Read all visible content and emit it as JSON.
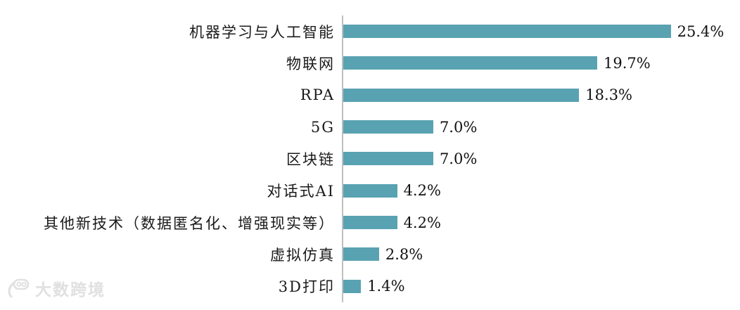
{
  "chart_data": {
    "type": "bar",
    "orientation": "horizontal",
    "title": "",
    "xlabel": "",
    "ylabel": "",
    "categories": [
      "机器学习与人工智能",
      "物联网",
      "RPA",
      "5G",
      "区块链",
      "对话式AI",
      "其他新技术（数据匿名化、增强现实等）",
      "虚拟仿真",
      "3D打印"
    ],
    "values": [
      25.4,
      19.7,
      18.3,
      7.0,
      7.0,
      4.2,
      4.2,
      2.8,
      1.4
    ],
    "value_labels": [
      "25.4%",
      "19.7%",
      "18.3%",
      "7.0%",
      "7.0%",
      "4.2%",
      "4.2%",
      "2.8%",
      "1.4%"
    ],
    "unit": "%",
    "data_label_position": "end-of-bar",
    "gridlines": false,
    "x_axis_ticks_visible": false,
    "bar_color": "#59a2b2",
    "axis_line_color": "#bfbfbf",
    "label_color": "#1a1a1a"
  },
  "watermark": {
    "text": "大数跨境"
  }
}
